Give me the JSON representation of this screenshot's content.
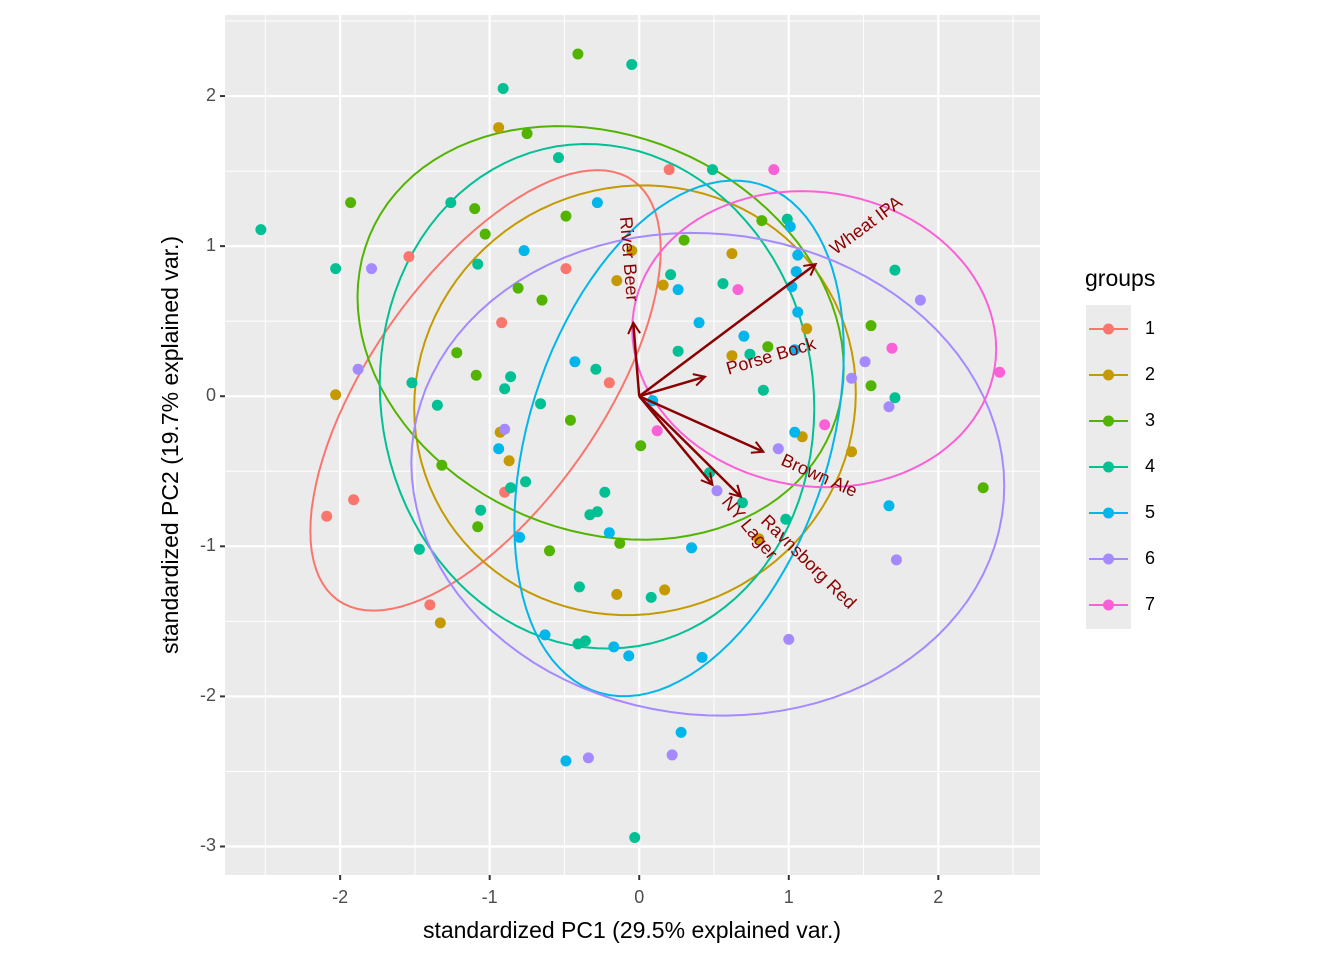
{
  "chart_data": {
    "type": "scatter",
    "xlabel": "standardized PC1 (29.5% explained var.)",
    "ylabel": "standardized PC2 (19.7% explained var.)",
    "xlim": [
      -2.77,
      2.68
    ],
    "ylim": [
      -3.19,
      2.54
    ],
    "xticks": [
      -2,
      -1,
      0,
      1,
      2
    ],
    "yticks": [
      -3,
      -2,
      -1,
      0,
      1,
      2
    ],
    "grid": true,
    "ellipses": true,
    "legend_title": "groups",
    "series": [
      {
        "name": "1",
        "color": "#F8766D",
        "x": [
          -1.54,
          -2.09,
          -1.91,
          -1.4,
          -0.92,
          -0.9,
          -0.49,
          -0.2,
          0.2
        ],
        "values": [
          0.93,
          -0.8,
          -0.69,
          -1.39,
          0.49,
          -0.64,
          0.85,
          0.09,
          1.51
        ]
      },
      {
        "name": "2",
        "color": "#C49A00",
        "x": [
          -2.03,
          -1.33,
          -0.94,
          -0.93,
          -0.87,
          -0.15,
          -0.05,
          -0.15,
          0.17,
          0.16,
          0.62,
          0.62,
          1.12,
          1.09,
          1.42,
          0.8
        ],
        "values": [
          0.01,
          -1.51,
          1.79,
          -0.24,
          -0.43,
          0.77,
          0.97,
          -1.32,
          -1.29,
          0.74,
          0.95,
          0.27,
          0.45,
          -0.27,
          -0.37,
          -0.95
        ]
      },
      {
        "name": "3",
        "color": "#53B400",
        "x": [
          -0.41,
          -0.75,
          -1.93,
          -1.1,
          -1.03,
          -0.81,
          -0.65,
          -0.49,
          -1.22,
          -1.09,
          -1.32,
          -1.08,
          -0.46,
          -0.6,
          0.01,
          0.3,
          0.82,
          0.86,
          1.55,
          1.55,
          2.3,
          -0.13
        ],
        "values": [
          2.28,
          1.75,
          1.29,
          1.25,
          1.08,
          0.72,
          0.64,
          1.2,
          0.29,
          0.14,
          -0.46,
          -0.87,
          -0.16,
          -1.03,
          -0.33,
          1.04,
          1.17,
          0.33,
          0.47,
          0.07,
          -0.61,
          -0.98
        ]
      },
      {
        "name": "4",
        "color": "#00C094",
        "x": [
          -2.53,
          -2.03,
          -0.91,
          -0.05,
          -0.54,
          -1.26,
          -1.08,
          -1.52,
          -1.35,
          -0.9,
          -0.86,
          -0.66,
          -0.29,
          -0.76,
          -0.86,
          -1.06,
          -1.47,
          -0.33,
          -0.28,
          -0.23,
          -0.4,
          -0.36,
          -0.41,
          0.08,
          -0.03,
          0.21,
          0.26,
          0.49,
          0.56,
          0.74,
          0.83,
          0.99,
          0.47,
          0.69,
          0.98,
          1.71,
          1.71
        ],
        "values": [
          1.11,
          0.85,
          2.05,
          2.21,
          1.59,
          1.29,
          0.88,
          0.09,
          -0.06,
          0.05,
          0.13,
          -0.05,
          0.18,
          -0.57,
          -0.61,
          -0.76,
          -1.02,
          -0.79,
          -0.77,
          -0.64,
          -1.27,
          -1.63,
          -1.65,
          -1.34,
          -2.94,
          0.81,
          0.3,
          1.51,
          0.75,
          0.28,
          0.04,
          1.18,
          -0.51,
          -0.71,
          -0.82,
          0.84,
          -0.01
        ]
      },
      {
        "name": "5",
        "color": "#00B6EB",
        "x": [
          -0.28,
          -0.77,
          0.26,
          0.4,
          -0.43,
          -0.94,
          -0.8,
          -0.63,
          -0.2,
          -0.17,
          -0.07,
          -0.49,
          0.35,
          0.42,
          0.28,
          0.7,
          1.01,
          1.06,
          1.05,
          1.02,
          1.06,
          1.04,
          1.04,
          1.67,
          0.09
        ],
        "values": [
          1.29,
          0.97,
          0.71,
          0.49,
          0.23,
          -0.35,
          -0.94,
          -1.59,
          -0.91,
          -1.67,
          -1.73,
          -2.43,
          -1.01,
          -1.74,
          -2.24,
          0.4,
          1.13,
          0.94,
          0.83,
          0.73,
          0.56,
          0.31,
          -0.24,
          -0.73,
          -0.03
        ]
      },
      {
        "name": "6",
        "color": "#A58AFF",
        "x": [
          -1.79,
          -1.88,
          -0.9,
          -0.34,
          0.22,
          0.52,
          0.93,
          1.0,
          1.42,
          1.51,
          1.67,
          1.72,
          1.88
        ],
        "values": [
          0.85,
          0.18,
          -0.22,
          -2.41,
          -2.39,
          -0.63,
          -0.35,
          -1.62,
          0.12,
          0.23,
          -0.07,
          -1.09,
          0.64
        ]
      },
      {
        "name": "7",
        "color": "#FB61D7",
        "x": [
          0.9,
          0.66,
          0.12,
          1.24,
          1.69,
          2.41
        ],
        "values": [
          1.51,
          0.71,
          -0.23,
          -0.19,
          0.32,
          0.16
        ]
      }
    ],
    "arrow_color": "#8B0000",
    "arrows": [
      {
        "name": "River Beer",
        "x": -0.04,
        "y": 0.49
      },
      {
        "name": "Wheat IPA",
        "x": 1.18,
        "y": 0.88
      },
      {
        "name": "Porse Bock",
        "x": 0.44,
        "y": 0.13
      },
      {
        "name": "Brown Ale",
        "x": 0.83,
        "y": -0.37
      },
      {
        "name": "NY Lager",
        "x": 0.49,
        "y": -0.59
      },
      {
        "name": "Ravnsborg Red",
        "x": 0.68,
        "y": -0.67
      }
    ]
  }
}
